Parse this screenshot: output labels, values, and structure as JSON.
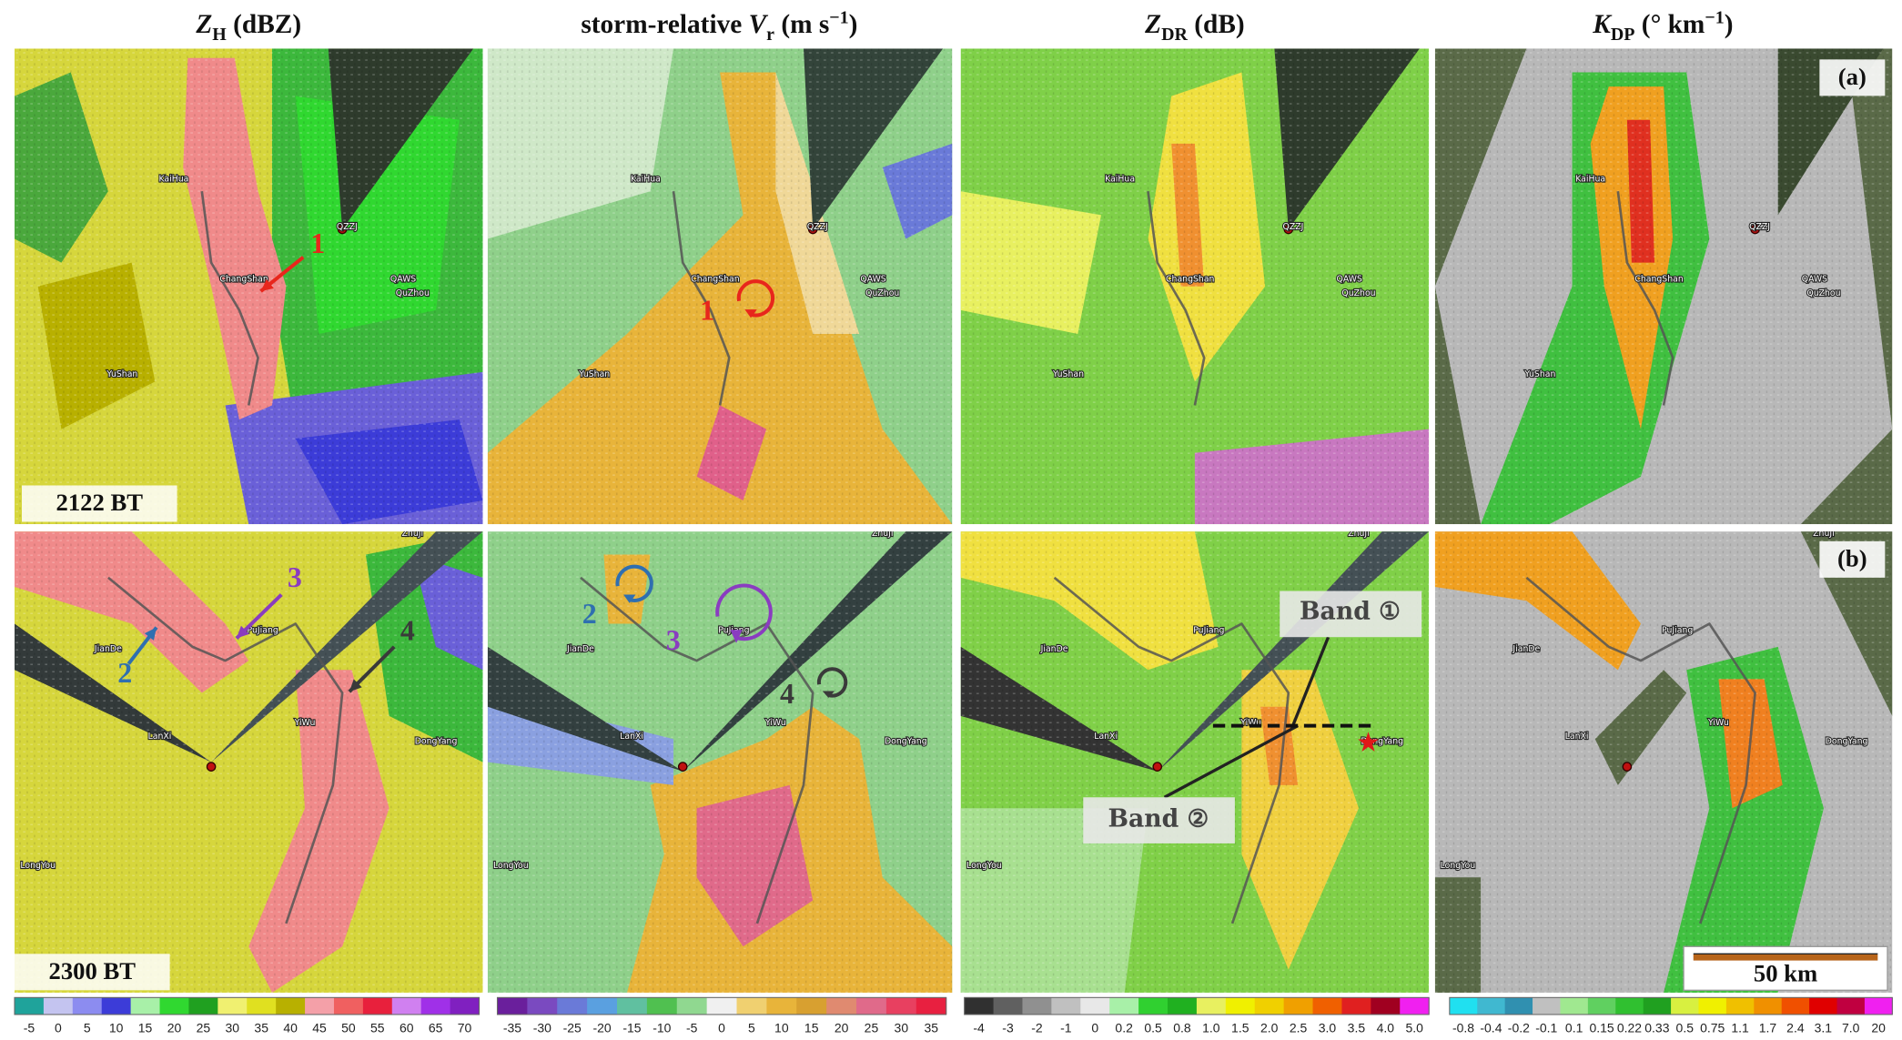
{
  "headers": [
    [
      {
        "text": "Z",
        "style": "italic"
      },
      {
        "text": "H",
        "style": "sub"
      },
      {
        "text": " (dBZ)",
        "style": "normal"
      }
    ],
    [
      {
        "text": "storm-relative ",
        "style": "normal"
      },
      {
        "text": "V",
        "style": "italic"
      },
      {
        "text": "r",
        "style": "sub"
      },
      {
        "text": " (m s",
        "style": "normal"
      },
      {
        "text": "−1",
        "style": "sup"
      },
      {
        "text": ")",
        "style": "normal"
      }
    ],
    [
      {
        "text": "Z",
        "style": "italic"
      },
      {
        "text": "DR",
        "style": "sub"
      },
      {
        "text": " (dB)",
        "style": "normal"
      }
    ],
    [
      {
        "text": "K",
        "style": "italic"
      },
      {
        "text": "DP",
        "style": "sub"
      },
      {
        "text": " (° km",
        "style": "normal"
      },
      {
        "text": "−1",
        "style": "sup"
      },
      {
        "text": ")",
        "style": "normal"
      }
    ]
  ],
  "rows": [
    {
      "time": "2122 BT",
      "tag": "(a)",
      "places": [
        "KaiHua",
        "ChangShan",
        "QZZJ",
        "QAWS",
        "QuZhou",
        "YuShan"
      ],
      "panels": [
        {
          "annotations": [
            {
              "text": "1",
              "color": "#e8261c"
            }
          ]
        },
        {
          "annotations": [
            {
              "text": "1",
              "color": "#e8261c"
            }
          ]
        },
        {
          "annotations": []
        },
        {
          "annotations": []
        }
      ]
    },
    {
      "time": "2300 BT",
      "tag": "(b)",
      "places": [
        "ZhuJi",
        "JianDe",
        "PuJiang",
        "YiWu",
        "DongYang",
        "LanXi",
        "LongYou"
      ],
      "panels": [
        {
          "annotations": [
            {
              "text": "2",
              "color": "#2f6fb0"
            },
            {
              "text": "3",
              "color": "#8a3cc0"
            },
            {
              "text": "4",
              "color": "#3a3a3a"
            }
          ]
        },
        {
          "annotations": [
            {
              "text": "2",
              "color": "#2f6fb0"
            },
            {
              "text": "3",
              "color": "#8a3cc0"
            },
            {
              "text": "4",
              "color": "#3a3a3a"
            }
          ]
        },
        {
          "annotations": [
            {
              "text": "Band ①",
              "color": "#444444"
            },
            {
              "text": "Band ②",
              "color": "#444444"
            }
          ]
        },
        {
          "annotations": [
            {
              "text": "50 km",
              "color": "#111111"
            }
          ]
        }
      ]
    }
  ],
  "colorbars": [
    {
      "labels": [
        "-5",
        "0",
        "5",
        "10",
        "15",
        "20",
        "25",
        "30",
        "35",
        "40",
        "45",
        "50",
        "55",
        "60",
        "65",
        "70"
      ],
      "colors": [
        "#1fa39b",
        "#c4c4f0",
        "#8c8cf0",
        "#3c3cd8",
        "#a8f0a8",
        "#30d830",
        "#20a020",
        "#f0f070",
        "#e0e020",
        "#b8b000",
        "#f4a0a8",
        "#f06060",
        "#e8203c",
        "#d080f0",
        "#a030e8",
        "#8020c0"
      ]
    },
    {
      "labels": [
        "-35",
        "-30",
        "-25",
        "-20",
        "-15",
        "-10",
        "-5",
        "0",
        "5",
        "10",
        "15",
        "20",
        "25",
        "30",
        "35"
      ],
      "colors": [
        "#6a1f9c",
        "#7a4ac0",
        "#6a7ad8",
        "#5aa0e0",
        "#60c0a0",
        "#50c050",
        "#90d890",
        "#f0f0f0",
        "#f0d070",
        "#e8b43a",
        "#d8a030",
        "#e08a70",
        "#e06a8a",
        "#e84060",
        "#e82040"
      ]
    },
    {
      "labels": [
        "-4",
        "-3",
        "-2",
        "-1",
        "0",
        "0.2",
        "0.5",
        "0.8",
        "1.0",
        "1.5",
        "2.0",
        "2.5",
        "3.0",
        "3.5",
        "4.0",
        "5.0"
      ],
      "colors": [
        "#303030",
        "#606060",
        "#909090",
        "#c0c0c0",
        "#e8e8e8",
        "#a8f0a8",
        "#30d030",
        "#20b020",
        "#e8f060",
        "#f0f000",
        "#f0d000",
        "#f0a000",
        "#f06000",
        "#e02020",
        "#a00020",
        "#f020f0"
      ]
    },
    {
      "labels": [
        "-0.8",
        "-0.4",
        "-0.2",
        "-0.1",
        "0.1",
        "0.15",
        "0.22",
        "0.33",
        "0.5",
        "0.75",
        "1.1",
        "1.7",
        "2.4",
        "3.1",
        "7.0",
        "20"
      ],
      "colors": [
        "#20e0f0",
        "#40b8d0",
        "#3090b0",
        "#c0c0c0",
        "#a0e890",
        "#60d060",
        "#30c030",
        "#20a020",
        "#d8f040",
        "#f0f000",
        "#f0c000",
        "#f09000",
        "#f05000",
        "#e00000",
        "#c00040",
        "#f020f0"
      ]
    }
  ]
}
